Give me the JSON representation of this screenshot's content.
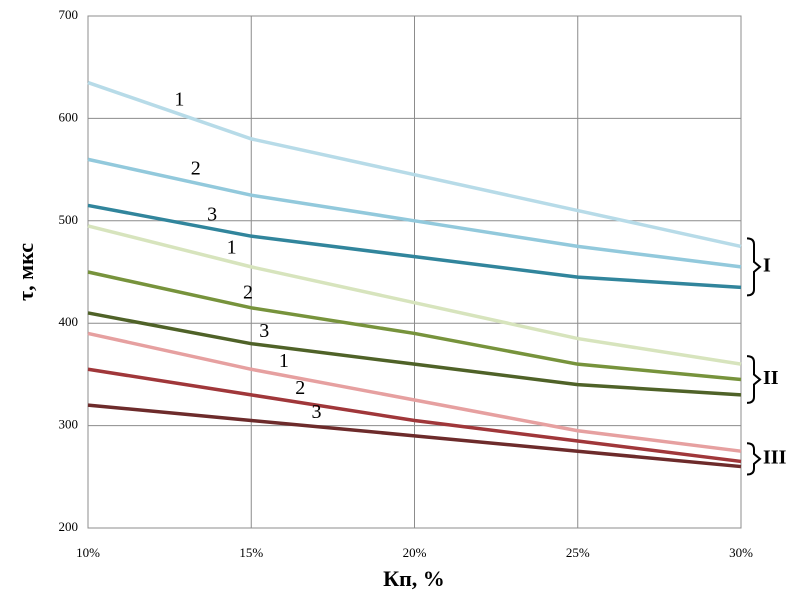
{
  "chart_data": {
    "type": "line",
    "x_label": "Кп, %",
    "y_label": "τ, мкс",
    "x": [
      10,
      15,
      20,
      25,
      30
    ],
    "xlim": [
      10,
      30
    ],
    "xticks": [
      {
        "value": 10,
        "label": "10%"
      },
      {
        "value": 15,
        "label": "15%"
      },
      {
        "value": 20,
        "label": "20%"
      },
      {
        "value": 25,
        "label": "25%"
      },
      {
        "value": 30,
        "label": "30%"
      }
    ],
    "ylim": [
      200,
      700
    ],
    "yticks": [
      200,
      300,
      400,
      500,
      600,
      700
    ],
    "grid": true,
    "groups": [
      {
        "name": "I",
        "series": [
          {
            "name": "1",
            "color": "#b7dbe8",
            "values": [
              635,
              580,
              545,
              510,
              475
            ]
          },
          {
            "name": "2",
            "color": "#92c9dc",
            "values": [
              560,
              525,
              500,
              475,
              455
            ]
          },
          {
            "name": "3",
            "color": "#31859c",
            "values": [
              515,
              485,
              465,
              445,
              435
            ]
          }
        ]
      },
      {
        "name": "II",
        "series": [
          {
            "name": "1",
            "color": "#d7e4bd",
            "values": [
              495,
              455,
              420,
              385,
              360
            ]
          },
          {
            "name": "2",
            "color": "#77933c",
            "values": [
              450,
              415,
              390,
              360,
              345
            ]
          },
          {
            "name": "3",
            "color": "#4f6228",
            "values": [
              410,
              380,
              360,
              340,
              330
            ]
          }
        ]
      },
      {
        "name": "III",
        "series": [
          {
            "name": "1",
            "color": "#e6a0a0",
            "values": [
              390,
              355,
              325,
              295,
              275
            ]
          },
          {
            "name": "2",
            "color": "#a0373a",
            "values": [
              355,
              330,
              305,
              285,
              265
            ]
          },
          {
            "name": "3",
            "color": "#6d2b2b",
            "values": [
              320,
              305,
              290,
              275,
              260
            ]
          }
        ]
      }
    ]
  }
}
